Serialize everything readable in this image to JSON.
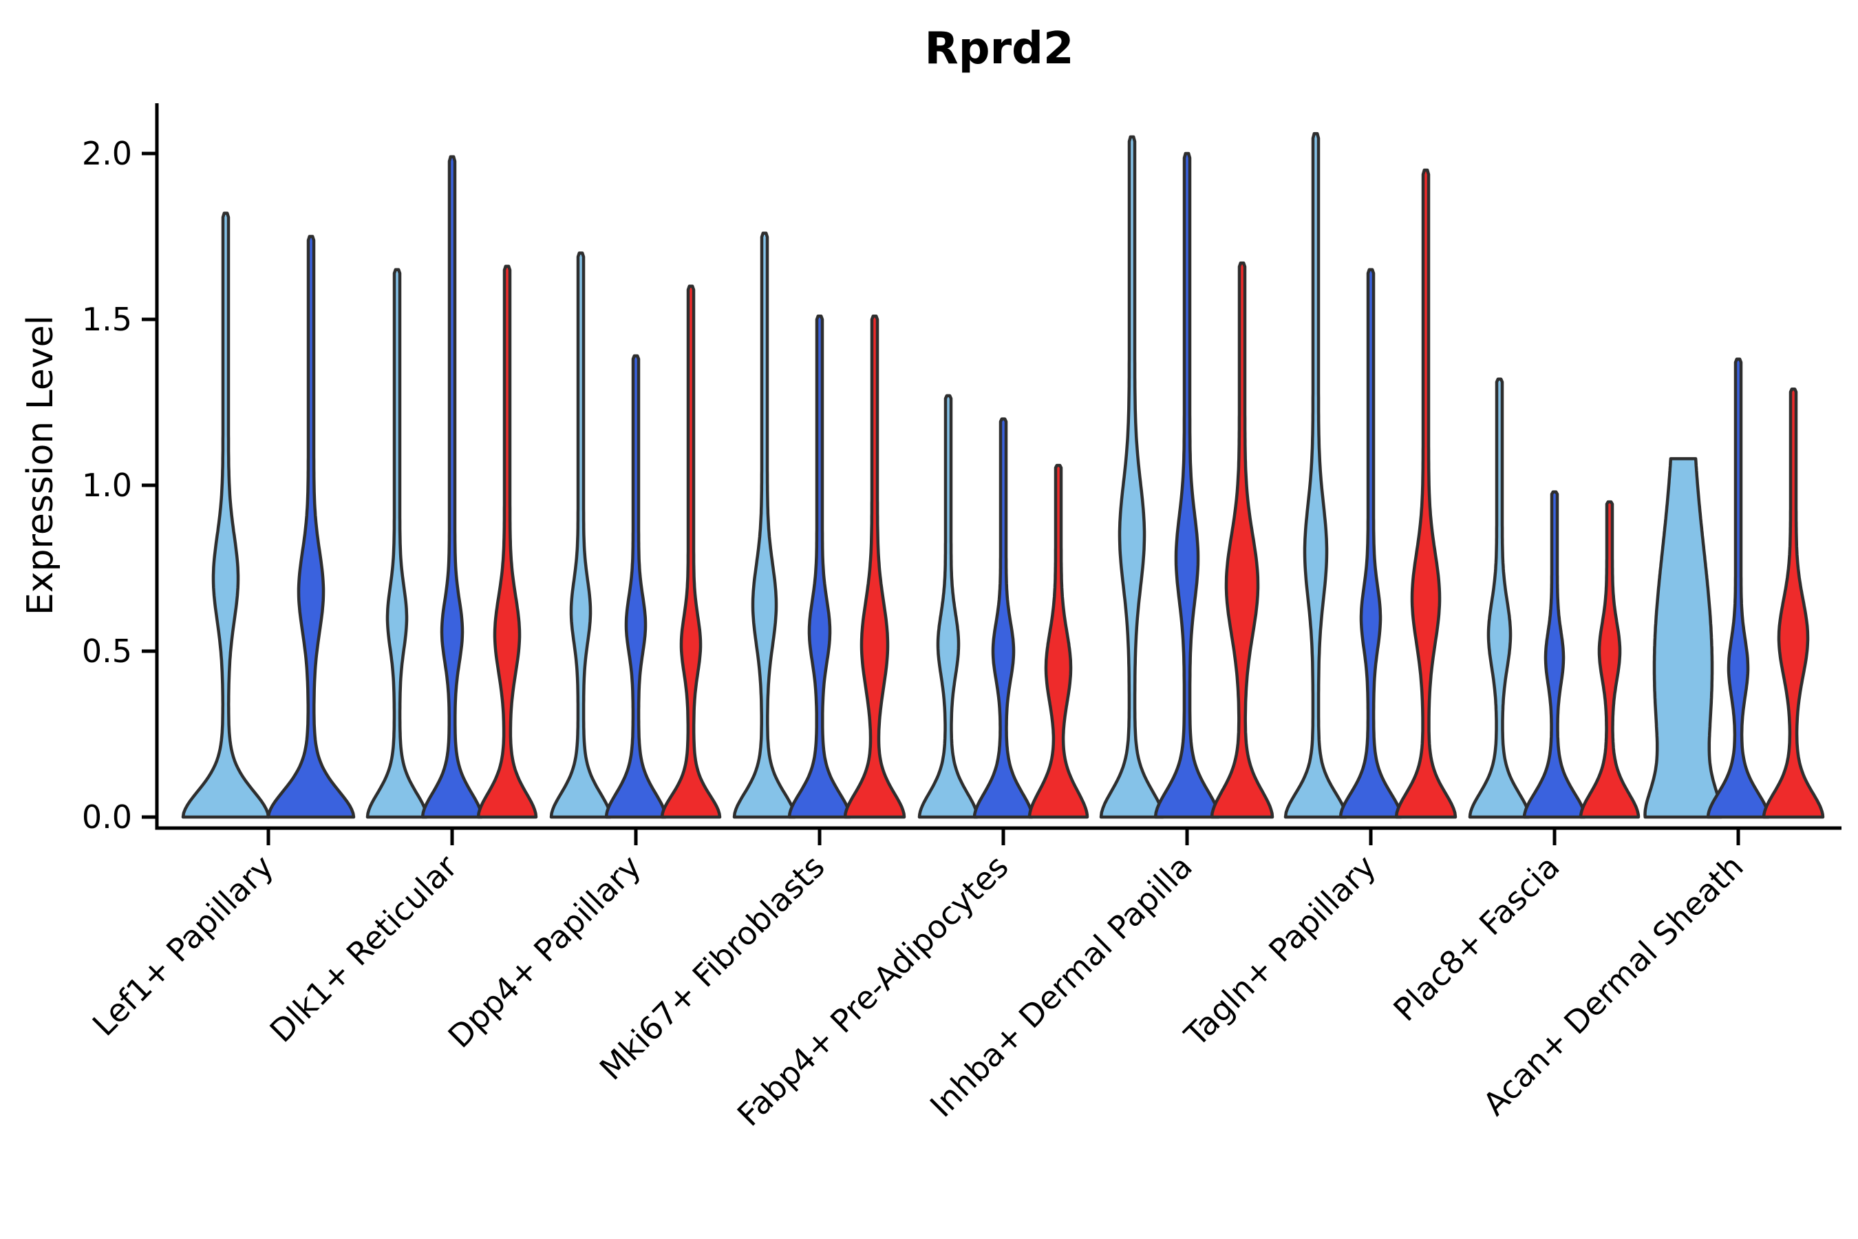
{
  "chart_data": {
    "type": "violin",
    "title": "Rprd2",
    "ylabel": "Expression Level",
    "xlabel": "",
    "yticks": [
      0.0,
      0.5,
      1.0,
      1.5,
      2.0
    ],
    "ylim": [
      0.0,
      2.18
    ],
    "grid": false,
    "legend": "none",
    "outline_color": "#2e2e2e",
    "background_color": "#ffffff",
    "split_colors": {
      "split1": "#85c2e8",
      "split2": "#3a62de",
      "split3": "#ee2b2b"
    },
    "categories": [
      "Lef1+ Papillary",
      "Dlk1+ Reticular",
      "Dpp4+ Papillary",
      "Mki67+ Fibroblasts",
      "Fabp4+ Pre-Adipocytes",
      "Inhba+ Dermal Papilla",
      "Tagln+ Papillary",
      "Plac8+ Fascia",
      "Acan+ Dermal Sheath"
    ],
    "violins": [
      {
        "cat": 0,
        "split": "split1",
        "max_expression": 1.82,
        "off": -62,
        "base": 58,
        "bs": 0.12,
        "bc": 0.72,
        "ba": 14,
        "bw": 0.18,
        "spike": 4,
        "blunt": false
      },
      {
        "cat": 0,
        "split": "split2",
        "max_expression": 1.75,
        "off": 62,
        "base": 58,
        "bs": 0.12,
        "bc": 0.68,
        "ba": 14,
        "bw": 0.17,
        "spike": 4,
        "blunt": false
      },
      {
        "cat": 1,
        "split": "split1",
        "max_expression": 1.65,
        "off": -80,
        "base": 39,
        "bs": 0.11,
        "bc": 0.6,
        "ba": 10,
        "bw": 0.13,
        "spike": 4,
        "blunt": false
      },
      {
        "cat": 1,
        "split": "split2",
        "max_expression": 1.99,
        "off": 0,
        "base": 39,
        "bs": 0.11,
        "bc": 0.56,
        "ba": 11,
        "bw": 0.13,
        "spike": 4,
        "blunt": false
      },
      {
        "cat": 1,
        "split": "split3",
        "max_expression": 1.66,
        "off": 80,
        "base": 38,
        "bs": 0.11,
        "bc": 0.55,
        "ba": 14,
        "bw": 0.16,
        "spike": 4,
        "blunt": false
      },
      {
        "cat": 2,
        "split": "split1",
        "max_expression": 1.7,
        "off": -80,
        "base": 39,
        "bs": 0.11,
        "bc": 0.62,
        "ba": 10,
        "bw": 0.13,
        "spike": 4,
        "blunt": false
      },
      {
        "cat": 2,
        "split": "split2",
        "max_expression": 1.39,
        "off": 0,
        "base": 39,
        "bs": 0.11,
        "bc": 0.58,
        "ba": 10,
        "bw": 0.12,
        "spike": 4,
        "blunt": false
      },
      {
        "cat": 2,
        "split": "split3",
        "max_expression": 1.6,
        "off": 80,
        "base": 38,
        "bs": 0.1,
        "bc": 0.52,
        "ba": 10,
        "bw": 0.12,
        "spike": 4,
        "blunt": false
      },
      {
        "cat": 3,
        "split": "split1",
        "max_expression": 1.76,
        "off": -80,
        "base": 40,
        "bs": 0.11,
        "bc": 0.64,
        "ba": 13,
        "bw": 0.17,
        "spike": 4,
        "blunt": false
      },
      {
        "cat": 3,
        "split": "split2",
        "max_expression": 1.51,
        "off": 0,
        "base": 40,
        "bs": 0.11,
        "bc": 0.56,
        "ba": 11,
        "bw": 0.13,
        "spike": 4,
        "blunt": false
      },
      {
        "cat": 3,
        "split": "split3",
        "max_expression": 1.51,
        "off": 80,
        "base": 39,
        "bs": 0.11,
        "bc": 0.52,
        "ba": 15,
        "bw": 0.18,
        "spike": 4,
        "blunt": false
      },
      {
        "cat": 4,
        "split": "split1",
        "max_expression": 1.27,
        "off": -80,
        "base": 38,
        "bs": 0.11,
        "bc": 0.52,
        "ba": 11,
        "bw": 0.13,
        "spike": 4,
        "blunt": false
      },
      {
        "cat": 4,
        "split": "split2",
        "max_expression": 1.2,
        "off": 0,
        "base": 38,
        "bs": 0.11,
        "bc": 0.5,
        "ba": 11,
        "bw": 0.12,
        "spike": 4,
        "blunt": false
      },
      {
        "cat": 4,
        "split": "split3",
        "max_expression": 1.06,
        "off": 80,
        "base": 38,
        "bs": 0.12,
        "bc": 0.45,
        "ba": 14,
        "bw": 0.15,
        "spike": 4,
        "blunt": false
      },
      {
        "cat": 5,
        "split": "split1",
        "max_expression": 2.05,
        "off": -80,
        "base": 41,
        "bs": 0.12,
        "bc": 0.85,
        "ba": 14,
        "bw": 0.22,
        "spike": 4,
        "blunt": false
      },
      {
        "cat": 5,
        "split": "split2",
        "max_expression": 2.0,
        "off": 0,
        "base": 42,
        "bs": 0.12,
        "bc": 0.78,
        "ba": 12,
        "bw": 0.18,
        "spike": 4,
        "blunt": false
      },
      {
        "cat": 5,
        "split": "split3",
        "max_expression": 1.67,
        "off": 80,
        "base": 40,
        "bs": 0.12,
        "bc": 0.7,
        "ba": 19,
        "bw": 0.21,
        "spike": 4,
        "blunt": false
      },
      {
        "cat": 6,
        "split": "split1",
        "max_expression": 2.06,
        "off": -80,
        "base": 40,
        "bs": 0.11,
        "bc": 0.8,
        "ba": 12,
        "bw": 0.2,
        "spike": 4,
        "blunt": false
      },
      {
        "cat": 6,
        "split": "split2",
        "max_expression": 1.65,
        "off": 0,
        "base": 40,
        "bs": 0.11,
        "bc": 0.6,
        "ba": 10,
        "bw": 0.13,
        "spike": 4,
        "blunt": false
      },
      {
        "cat": 6,
        "split": "split3",
        "max_expression": 1.95,
        "off": 80,
        "base": 39,
        "bs": 0.11,
        "bc": 0.66,
        "ba": 16,
        "bw": 0.19,
        "spike": 4,
        "blunt": false
      },
      {
        "cat": 7,
        "split": "split1",
        "max_expression": 1.32,
        "off": -80,
        "base": 39,
        "bs": 0.11,
        "bc": 0.55,
        "ba": 12,
        "bw": 0.14,
        "spike": 4,
        "blunt": false
      },
      {
        "cat": 7,
        "split": "split2",
        "max_expression": 0.98,
        "off": 0,
        "base": 40,
        "bs": 0.11,
        "bc": 0.48,
        "ba": 9,
        "bw": 0.11,
        "spike": 4,
        "blunt": false
      },
      {
        "cat": 7,
        "split": "split3",
        "max_expression": 0.95,
        "off": 80,
        "base": 38,
        "bs": 0.11,
        "bc": 0.5,
        "ba": 11,
        "bw": 0.12,
        "spike": 4,
        "blunt": false
      },
      {
        "cat": 8,
        "split": "split1",
        "max_expression": 1.08,
        "off": -80,
        "base": 30,
        "bs": 0.12,
        "bc": 0.45,
        "ba": 30,
        "bw": 0.5,
        "spike": 12,
        "blunt": true
      },
      {
        "cat": 8,
        "split": "split2",
        "max_expression": 1.38,
        "off": 0,
        "base": 40,
        "bs": 0.11,
        "bc": 0.45,
        "ba": 10,
        "bw": 0.12,
        "spike": 4,
        "blunt": false
      },
      {
        "cat": 8,
        "split": "split3",
        "max_expression": 1.29,
        "off": 80,
        "base": 39,
        "bs": 0.11,
        "bc": 0.54,
        "ba": 17,
        "bw": 0.16,
        "spike": 4,
        "blunt": false
      }
    ]
  }
}
